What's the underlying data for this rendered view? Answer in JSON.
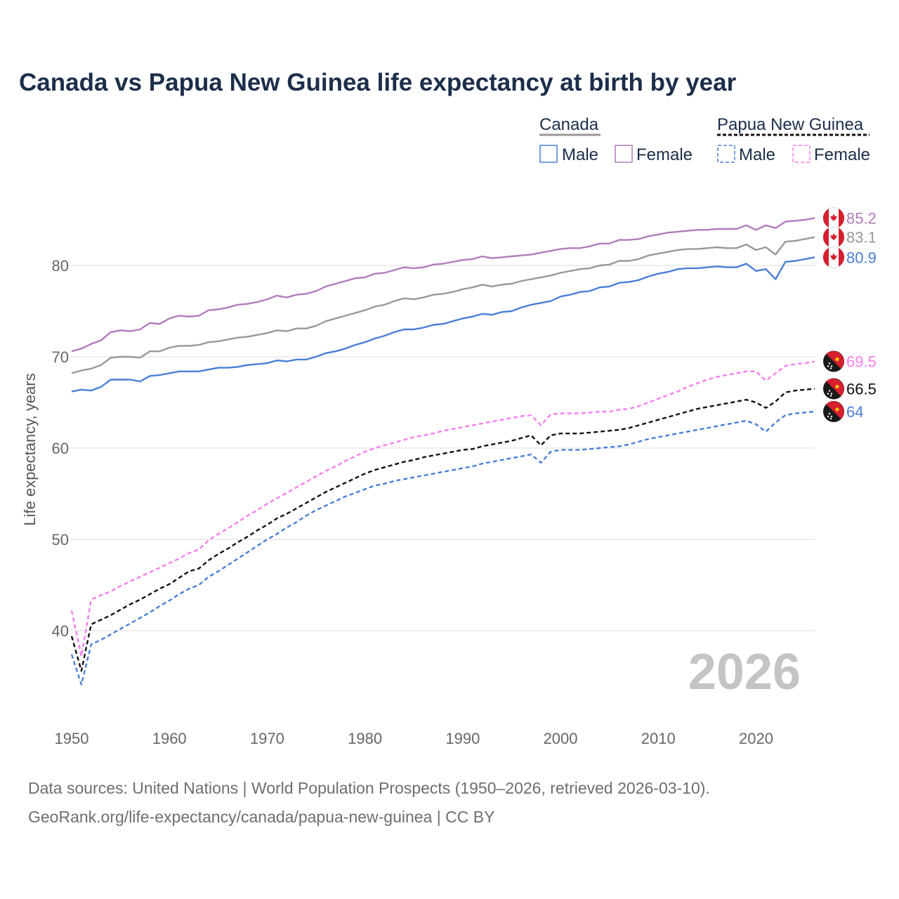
{
  "title": "Canada vs Papua New Guinea life expectancy at birth by year",
  "legend": {
    "group1": "Canada",
    "group2": "Papua New Guinea",
    "male": "Male",
    "female": "Female"
  },
  "year_stamp": "2026",
  "source_line1": "Data sources: United Nations | World Population Prospects (1950–2026, retrieved 2026-03-10).",
  "source_line2": "GeoRank.org/life-expectancy/canada/papua-new-guinea | CC BY",
  "colors": {
    "male": "#4a7fd6",
    "female": "#b07cbc",
    "total_canada": "#999999",
    "pg_female": "#f77ff0",
    "pg_total": "#111111",
    "pg_male": "#4a7fd6",
    "grid": "#e8e8e8",
    "flag_red": "#d51f2e",
    "flag_black": "#1a1a1a"
  },
  "chart_data": {
    "type": "line",
    "title": "Canada vs Papua New Guinea life expectancy at birth by year",
    "xlabel": "",
    "ylabel": "Life expectancy, years",
    "xlim": [
      1950,
      2026
    ],
    "ylim": [
      31,
      88
    ],
    "x_ticks": [
      1950,
      1960,
      1970,
      1980,
      1990,
      2000,
      2010,
      2020
    ],
    "y_ticks": [
      40,
      50,
      60,
      70,
      80
    ],
    "grid": "horizontal",
    "x": [
      1950,
      1951,
      1952,
      1953,
      1954,
      1955,
      1956,
      1957,
      1958,
      1959,
      1960,
      1961,
      1962,
      1963,
      1964,
      1965,
      1966,
      1967,
      1968,
      1969,
      1970,
      1971,
      1972,
      1973,
      1974,
      1975,
      1976,
      1977,
      1978,
      1979,
      1980,
      1981,
      1982,
      1983,
      1984,
      1985,
      1986,
      1987,
      1988,
      1989,
      1990,
      1991,
      1992,
      1993,
      1994,
      1995,
      1996,
      1997,
      1998,
      1999,
      2000,
      2001,
      2002,
      2003,
      2004,
      2005,
      2006,
      2007,
      2008,
      2009,
      2010,
      2011,
      2012,
      2013,
      2014,
      2015,
      2016,
      2017,
      2018,
      2019,
      2020,
      2021,
      2022,
      2023,
      2024,
      2025,
      2026
    ],
    "series": [
      {
        "name": "Canada Female",
        "country": "Canada",
        "sex": "Female",
        "style": "solid",
        "end_label": "85.2",
        "values": [
          70.6,
          70.9,
          71.4,
          71.8,
          72.7,
          72.9,
          72.8,
          73.0,
          73.7,
          73.6,
          74.2,
          74.5,
          74.4,
          74.5,
          75.1,
          75.2,
          75.4,
          75.7,
          75.8,
          76.0,
          76.3,
          76.7,
          76.5,
          76.8,
          76.9,
          77.2,
          77.7,
          78.0,
          78.3,
          78.6,
          78.7,
          79.1,
          79.2,
          79.5,
          79.8,
          79.7,
          79.8,
          80.1,
          80.2,
          80.4,
          80.6,
          80.7,
          81.0,
          80.8,
          80.9,
          81.0,
          81.1,
          81.2,
          81.4,
          81.6,
          81.8,
          81.9,
          81.9,
          82.1,
          82.4,
          82.4,
          82.8,
          82.8,
          82.9,
          83.2,
          83.4,
          83.6,
          83.7,
          83.8,
          83.9,
          83.9,
          84.0,
          84.0,
          84.0,
          84.4,
          83.9,
          84.4,
          84.1,
          84.8,
          84.9,
          85.0,
          85.2
        ]
      },
      {
        "name": "Canada Total",
        "country": "Canada",
        "sex": "Total",
        "style": "solid",
        "end_label": "83.1",
        "values": [
          68.2,
          68.5,
          68.7,
          69.1,
          69.9,
          70.0,
          70.0,
          69.9,
          70.6,
          70.6,
          71.0,
          71.2,
          71.2,
          71.3,
          71.6,
          71.7,
          71.9,
          72.1,
          72.2,
          72.4,
          72.6,
          72.9,
          72.8,
          73.1,
          73.1,
          73.4,
          73.9,
          74.2,
          74.5,
          74.8,
          75.1,
          75.5,
          75.7,
          76.1,
          76.4,
          76.3,
          76.5,
          76.8,
          76.9,
          77.1,
          77.4,
          77.6,
          77.9,
          77.7,
          77.9,
          78.0,
          78.3,
          78.5,
          78.7,
          78.9,
          79.2,
          79.4,
          79.6,
          79.7,
          80.0,
          80.1,
          80.5,
          80.5,
          80.7,
          81.1,
          81.3,
          81.5,
          81.7,
          81.8,
          81.8,
          81.9,
          82.0,
          81.9,
          81.9,
          82.3,
          81.7,
          82.0,
          81.2,
          82.6,
          82.7,
          82.9,
          83.1
        ]
      },
      {
        "name": "Canada Male",
        "country": "Canada",
        "sex": "Male",
        "style": "solid",
        "end_label": "80.9",
        "values": [
          66.2,
          66.4,
          66.3,
          66.7,
          67.5,
          67.5,
          67.5,
          67.3,
          67.9,
          68.0,
          68.2,
          68.4,
          68.4,
          68.4,
          68.6,
          68.8,
          68.8,
          68.9,
          69.1,
          69.2,
          69.3,
          69.6,
          69.5,
          69.7,
          69.7,
          70.0,
          70.4,
          70.6,
          70.9,
          71.3,
          71.6,
          72.0,
          72.3,
          72.7,
          73.0,
          73.0,
          73.2,
          73.5,
          73.6,
          73.9,
          74.2,
          74.4,
          74.7,
          74.6,
          74.9,
          75.0,
          75.4,
          75.7,
          75.9,
          76.1,
          76.6,
          76.8,
          77.1,
          77.2,
          77.6,
          77.7,
          78.1,
          78.2,
          78.4,
          78.8,
          79.1,
          79.3,
          79.6,
          79.7,
          79.7,
          79.8,
          79.9,
          79.8,
          79.8,
          80.2,
          79.4,
          79.6,
          78.5,
          80.4,
          80.5,
          80.7,
          80.9
        ]
      },
      {
        "name": "Papua New Guinea Female",
        "country": "Papua New Guinea",
        "sex": "Female",
        "style": "dashed",
        "end_label": "69.5",
        "values": [
          42.2,
          37.2,
          43.4,
          43.9,
          44.3,
          44.9,
          45.4,
          45.9,
          46.4,
          46.9,
          47.4,
          47.9,
          48.5,
          48.9,
          49.9,
          50.6,
          51.2,
          51.9,
          52.6,
          53.2,
          53.9,
          54.5,
          55.1,
          55.7,
          56.3,
          56.9,
          57.5,
          58.0,
          58.6,
          59.1,
          59.6,
          60.0,
          60.3,
          60.6,
          60.9,
          61.2,
          61.4,
          61.6,
          61.9,
          62.1,
          62.3,
          62.5,
          62.7,
          62.9,
          63.1,
          63.3,
          63.5,
          63.6,
          62.5,
          63.7,
          63.8,
          63.8,
          63.8,
          63.9,
          64.0,
          64.0,
          64.2,
          64.3,
          64.6,
          65.0,
          65.4,
          65.8,
          66.2,
          66.7,
          67.1,
          67.5,
          67.8,
          68.0,
          68.2,
          68.4,
          68.4,
          67.4,
          68.2,
          69.0,
          69.2,
          69.3,
          69.5
        ]
      },
      {
        "name": "Papua New Guinea Total",
        "country": "Papua New Guinea",
        "sex": "Total",
        "style": "dashed",
        "end_label": "66.5",
        "values": [
          39.4,
          35.6,
          40.7,
          41.2,
          41.7,
          42.3,
          42.9,
          43.4,
          44.0,
          44.6,
          45.1,
          45.8,
          46.5,
          46.8,
          47.7,
          48.4,
          49.0,
          49.7,
          50.3,
          51.0,
          51.6,
          52.3,
          52.8,
          53.4,
          54.0,
          54.6,
          55.2,
          55.7,
          56.2,
          56.7,
          57.2,
          57.6,
          57.9,
          58.2,
          58.5,
          58.7,
          59.0,
          59.2,
          59.4,
          59.6,
          59.8,
          59.9,
          60.2,
          60.4,
          60.6,
          60.8,
          61.1,
          61.4,
          60.3,
          61.4,
          61.6,
          61.6,
          61.6,
          61.7,
          61.8,
          61.9,
          62.0,
          62.2,
          62.5,
          62.8,
          63.1,
          63.4,
          63.7,
          64.0,
          64.3,
          64.5,
          64.7,
          64.9,
          65.1,
          65.3,
          65.0,
          64.4,
          65.1,
          66.1,
          66.3,
          66.4,
          66.5
        ]
      },
      {
        "name": "Papua New Guinea Male",
        "country": "Papua New Guinea",
        "sex": "Male",
        "style": "dashed",
        "end_label": "64",
        "values": [
          37.4,
          34.1,
          38.5,
          39.0,
          39.6,
          40.2,
          40.8,
          41.4,
          42.0,
          42.7,
          43.3,
          44.0,
          44.6,
          45.0,
          45.9,
          46.5,
          47.2,
          47.9,
          48.6,
          49.3,
          50.0,
          50.6,
          51.3,
          51.9,
          52.6,
          53.2,
          53.7,
          54.2,
          54.7,
          55.1,
          55.5,
          55.9,
          56.1,
          56.4,
          56.6,
          56.8,
          57.0,
          57.2,
          57.4,
          57.6,
          57.8,
          58.0,
          58.3,
          58.5,
          58.7,
          58.9,
          59.1,
          59.3,
          58.4,
          59.6,
          59.8,
          59.8,
          59.8,
          59.9,
          60.0,
          60.1,
          60.2,
          60.4,
          60.7,
          61.0,
          61.2,
          61.4,
          61.6,
          61.8,
          62.0,
          62.2,
          62.4,
          62.6,
          62.8,
          63.0,
          62.6,
          61.8,
          62.8,
          63.6,
          63.8,
          63.9,
          64.0
        ]
      }
    ]
  }
}
